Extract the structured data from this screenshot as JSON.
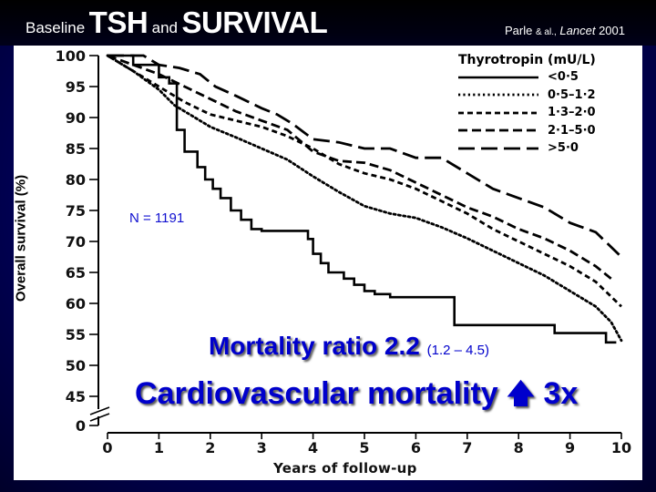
{
  "header": {
    "title_parts": [
      "Baseline",
      "TSH",
      "and",
      "SURVIVAL"
    ],
    "citation_author": "Parle",
    "citation_etal": "& al.,",
    "citation_journal": "Lancet",
    "citation_year": "2001"
  },
  "annotations": {
    "n_label": "N = 1191",
    "mortality_ratio": "Mortality ratio 2.2",
    "mortality_ci": "(1.2 – 4.5)",
    "cv_mortality_prefix": "Cardiovascular mortality",
    "cv_arrow_icon": "🡅",
    "cv_mortality_suffix": "3x"
  },
  "colors": {
    "background": "#000060",
    "annotation_text": "#0000cc",
    "n_text": "#1010d0",
    "curve": "#000000"
  },
  "chart_data": {
    "type": "line",
    "title": "",
    "xlabel": "Years of follow-up",
    "ylabel": "Overall survival (%)",
    "xlim": [
      0,
      10
    ],
    "ylim": [
      45,
      100
    ],
    "y_axis_break": true,
    "y_extra_tick": 0,
    "xticks": [
      "0",
      "1",
      "2",
      "3",
      "4",
      "5",
      "6",
      "7",
      "8",
      "9",
      "10"
    ],
    "yticks": [
      "100",
      "95",
      "90",
      "85",
      "80",
      "75",
      "70",
      "65",
      "60",
      "55",
      "50",
      "45",
      "0"
    ],
    "grid": false,
    "legend_title": "Thyrotropin (mU/L)",
    "legend_position": "top-right",
    "series": [
      {
        "name": "<0·5",
        "style": "solid",
        "x": [
          0,
          0.5,
          1.0,
          1.2,
          1.35,
          1.5,
          1.75,
          1.9,
          2.05,
          2.2,
          2.4,
          2.6,
          2.8,
          3.0,
          3.7,
          3.9,
          4.0,
          4.15,
          4.3,
          4.6,
          4.8,
          5.0,
          5.2,
          5.5,
          6.7,
          6.75,
          8.6,
          8.7,
          9.6,
          9.7,
          9.9
        ],
        "y": [
          100,
          98.5,
          96.5,
          95.5,
          88,
          84.5,
          82,
          80,
          78.5,
          77,
          75,
          73.5,
          72,
          71.7,
          71.7,
          70.4,
          68,
          66.5,
          65,
          64,
          63,
          62,
          61.5,
          61,
          61,
          56.5,
          56.5,
          55.2,
          55.2,
          53.7,
          53.7
        ]
      },
      {
        "name": "0·5–1·2",
        "style": "dotted",
        "x": [
          0,
          0.5,
          1.0,
          1.3,
          1.7,
          2.0,
          2.5,
          3.0,
          3.5,
          4.0,
          4.5,
          5.0,
          5.5,
          6.0,
          6.5,
          7.0,
          7.5,
          8.0,
          8.5,
          9.0,
          9.5,
          9.8,
          10.0
        ],
        "y": [
          100,
          97.5,
          94.5,
          92,
          90,
          88.5,
          86.8,
          85,
          83.2,
          80.5,
          78,
          75.7,
          74.5,
          73.8,
          72.3,
          70.5,
          68.5,
          66.5,
          64.5,
          62,
          59.5,
          57,
          54
        ]
      },
      {
        "name": "1·3–2·0",
        "style": "short-dash",
        "x": [
          0,
          0.5,
          1.0,
          1.5,
          2.0,
          2.5,
          3.0,
          3.5,
          4.0,
          4.5,
          5.0,
          5.5,
          6.0,
          6.5,
          7.0,
          7.5,
          8.0,
          8.5,
          9.0,
          9.5,
          10.0
        ],
        "y": [
          100,
          97.5,
          95,
          92.5,
          90.5,
          89.5,
          88.5,
          87,
          85,
          82.5,
          81,
          80,
          78.5,
          76.5,
          74.5,
          72,
          70,
          68,
          66,
          63.5,
          59.5
        ]
      },
      {
        "name": "2·1–5·0",
        "style": "medium-dash",
        "x": [
          0,
          0.5,
          1.0,
          1.5,
          2.0,
          2.5,
          3.0,
          3.5,
          4.0,
          4.5,
          5.0,
          5.5,
          6.0,
          6.5,
          7.0,
          7.5,
          8.0,
          8.5,
          9.0,
          9.5,
          9.8
        ],
        "y": [
          100,
          98.5,
          97,
          95,
          93,
          91,
          89.5,
          88,
          84.5,
          83,
          82.7,
          81.5,
          79.5,
          77.5,
          75.5,
          74,
          72,
          70.5,
          68.5,
          66,
          64
        ]
      },
      {
        "name": ">5·0",
        "style": "long-dash",
        "x": [
          0,
          0.7,
          1.0,
          1.4,
          1.8,
          2.1,
          2.5,
          3.0,
          3.3,
          3.6,
          4.0,
          4.5,
          5.0,
          5.5,
          6.0,
          6.5,
          7.0,
          7.5,
          8.0,
          8.5,
          9.0,
          9.5,
          10.0
        ],
        "y": [
          100,
          100,
          98.5,
          98,
          97,
          95,
          93.5,
          91.5,
          90.5,
          89,
          86.5,
          86,
          85,
          85,
          83.5,
          83.5,
          81,
          78.5,
          77,
          75.5,
          73,
          71.5,
          67.5
        ]
      }
    ]
  }
}
